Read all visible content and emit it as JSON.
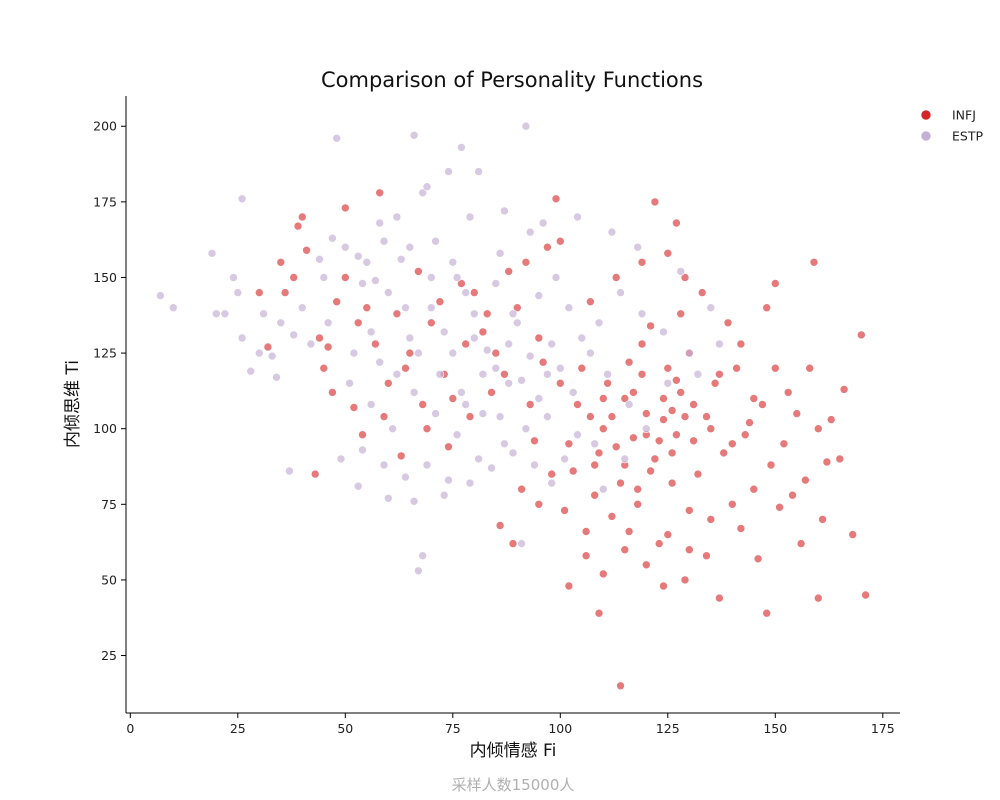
{
  "chart_data": {
    "type": "scatter",
    "title": "Comparison of Personality Functions",
    "xlabel": "内倾情感 Fi",
    "ylabel": "内倾思维 Ti",
    "footnote": "采样人数15000人",
    "xlim": [
      -1,
      179
    ],
    "ylim": [
      6,
      210
    ],
    "xticks": [
      0,
      25,
      50,
      75,
      100,
      125,
      150,
      175
    ],
    "yticks": [
      25,
      50,
      75,
      100,
      125,
      150,
      175,
      200
    ],
    "grid": false,
    "legend_position": "top-right",
    "series": [
      {
        "name": "INFJ",
        "color": "#d62728",
        "points": [
          [
            113,
            94
          ],
          [
            120,
            105
          ],
          [
            128,
            112
          ],
          [
            108,
            88
          ],
          [
            135,
            100
          ],
          [
            125,
            120
          ],
          [
            140,
            95
          ],
          [
            118,
            80
          ],
          [
            100,
            115
          ],
          [
            95,
            130
          ],
          [
            130,
            125
          ],
          [
            145,
            110
          ],
          [
            110,
            100
          ],
          [
            122,
            90
          ],
          [
            132,
            85
          ],
          [
            105,
            120
          ],
          [
            115,
            110
          ],
          [
            127,
            98
          ],
          [
            90,
            140
          ],
          [
            85,
            125
          ],
          [
            80,
            145
          ],
          [
            75,
            110
          ],
          [
            70,
            135
          ],
          [
            65,
            125
          ],
          [
            150,
            120
          ],
          [
            155,
            105
          ],
          [
            160,
            100
          ],
          [
            165,
            90
          ],
          [
            148,
            140
          ],
          [
            140,
            75
          ],
          [
            135,
            70
          ],
          [
            125,
            65
          ],
          [
            115,
            60
          ],
          [
            110,
            52
          ],
          [
            120,
            55
          ],
          [
            130,
            60
          ],
          [
            112,
            71
          ],
          [
            118,
            75
          ],
          [
            102,
            95
          ],
          [
            98,
            85
          ],
          [
            137,
            118
          ],
          [
            142,
            128
          ],
          [
            152,
            95
          ],
          [
            128,
            138
          ],
          [
            133,
            145
          ],
          [
            125,
            158
          ],
          [
            122,
            175
          ],
          [
            127,
            168
          ],
          [
            97,
            160
          ],
          [
            92,
            155
          ],
          [
            100,
            162
          ],
          [
            88,
            152
          ],
          [
            83,
            138
          ],
          [
            78,
            128
          ],
          [
            73,
            118
          ],
          [
            68,
            108
          ],
          [
            60,
            115
          ],
          [
            55,
            140
          ],
          [
            50,
            150
          ],
          [
            45,
            120
          ],
          [
            43,
            85
          ],
          [
            36,
            145
          ],
          [
            40,
            170
          ],
          [
            30,
            145
          ],
          [
            41,
            159
          ],
          [
            35,
            155
          ],
          [
            52,
            107
          ],
          [
            63,
            91
          ],
          [
            58,
            178
          ],
          [
            50,
            173
          ],
          [
            114,
            15
          ],
          [
            99,
            176
          ],
          [
            109,
            39
          ],
          [
            102,
            48
          ],
          [
            124,
            48
          ],
          [
            137,
            44
          ],
          [
            148,
            39
          ],
          [
            160,
            44
          ],
          [
            171,
            45
          ],
          [
            162,
            89
          ],
          [
            168,
            65
          ],
          [
            170,
            131
          ],
          [
            166,
            113
          ],
          [
            159,
            155
          ],
          [
            150,
            148
          ],
          [
            157,
            83
          ],
          [
            146,
            57
          ],
          [
            142,
            67
          ],
          [
            130,
            73
          ],
          [
            106,
            66
          ],
          [
            95,
            75
          ],
          [
            89,
            62
          ],
          [
            86,
            68
          ],
          [
            91,
            80
          ],
          [
            104,
            108
          ],
          [
            116,
            122
          ],
          [
            121,
            134
          ],
          [
            131,
            108
          ],
          [
            144,
            102
          ],
          [
            138,
            92
          ],
          [
            126,
            82
          ],
          [
            117,
            97
          ],
          [
            109,
            92
          ],
          [
            103,
            86
          ],
          [
            111,
            115
          ],
          [
            119,
            128
          ],
          [
            124,
            103
          ],
          [
            136,
            115
          ],
          [
            141,
            120
          ],
          [
            147,
            108
          ],
          [
            153,
            112
          ],
          [
            158,
            120
          ],
          [
            163,
            103
          ],
          [
            134,
            58
          ],
          [
            129,
            50
          ],
          [
            123,
            62
          ],
          [
            116,
            66
          ],
          [
            106,
            58
          ],
          [
            101,
            73
          ],
          [
            94,
            96
          ],
          [
            87,
            118
          ],
          [
            82,
            132
          ],
          [
            77,
            148
          ],
          [
            72,
            142
          ],
          [
            67,
            152
          ],
          [
            62,
            138
          ],
          [
            57,
            128
          ],
          [
            53,
            135
          ],
          [
            48,
            142
          ],
          [
            46,
            127
          ],
          [
            38,
            150
          ],
          [
            44,
            130
          ],
          [
            39,
            167
          ],
          [
            32,
            127
          ],
          [
            47,
            112
          ],
          [
            54,
            98
          ],
          [
            59,
            104
          ],
          [
            64,
            120
          ],
          [
            69,
            100
          ],
          [
            74,
            94
          ],
          [
            79,
            104
          ],
          [
            84,
            112
          ],
          [
            93,
            108
          ],
          [
            96,
            122
          ],
          [
            107,
            142
          ],
          [
            113,
            150
          ],
          [
            119,
            155
          ],
          [
            129,
            150
          ],
          [
            139,
            135
          ],
          [
            143,
            98
          ],
          [
            149,
            88
          ],
          [
            154,
            78
          ],
          [
            161,
            70
          ],
          [
            156,
            62
          ],
          [
            151,
            74
          ],
          [
            145,
            80
          ],
          [
            126,
            92
          ],
          [
            121,
            86
          ],
          [
            114,
            82
          ],
          [
            108,
            78
          ],
          [
            112,
            104
          ],
          [
            117,
            112
          ],
          [
            123,
            96
          ],
          [
            131,
            96
          ],
          [
            134,
            104
          ],
          [
            127,
            116
          ],
          [
            119,
            118
          ],
          [
            107,
            104
          ],
          [
            110,
            110
          ],
          [
            124,
            110
          ],
          [
            129,
            104
          ],
          [
            115,
            88
          ],
          [
            120,
            98
          ],
          [
            126,
            106
          ]
        ]
      },
      {
        "name": "ESTP",
        "color": "#c5b0d5",
        "points": [
          [
            80,
            130
          ],
          [
            85,
            120
          ],
          [
            75,
            125
          ],
          [
            90,
            135
          ],
          [
            70,
            140
          ],
          [
            95,
            110
          ],
          [
            65,
            130
          ],
          [
            88,
            115
          ],
          [
            78,
            145
          ],
          [
            82,
            105
          ],
          [
            100,
            120
          ],
          [
            105,
            130
          ],
          [
            92,
            100
          ],
          [
            72,
            118
          ],
          [
            60,
            145
          ],
          [
            55,
            155
          ],
          [
            50,
            160
          ],
          [
            45,
            150
          ],
          [
            40,
            140
          ],
          [
            35,
            135
          ],
          [
            30,
            125
          ],
          [
            25,
            145
          ],
          [
            20,
            138
          ],
          [
            62,
            170
          ],
          [
            68,
            178
          ],
          [
            74,
            185
          ],
          [
            58,
            168
          ],
          [
            48,
            196
          ],
          [
            66,
            197
          ],
          [
            77,
            193
          ],
          [
            92,
            200
          ],
          [
            81,
            185
          ],
          [
            69,
            180
          ],
          [
            10,
            140
          ],
          [
            7,
            144
          ],
          [
            19,
            158
          ],
          [
            24,
            150
          ],
          [
            26,
            176
          ],
          [
            37,
            86
          ],
          [
            67,
            53
          ],
          [
            68,
            58
          ],
          [
            53,
            81
          ],
          [
            60,
            77
          ],
          [
            66,
            76
          ],
          [
            73,
            78
          ],
          [
            91,
            62
          ],
          [
            98,
            82
          ],
          [
            110,
            80
          ],
          [
            115,
            90
          ],
          [
            120,
            100
          ],
          [
            125,
            115
          ],
          [
            130,
            125
          ],
          [
            135,
            140
          ],
          [
            128,
            152
          ],
          [
            118,
            160
          ],
          [
            112,
            165
          ],
          [
            104,
            170
          ],
          [
            96,
            168
          ],
          [
            86,
            158
          ],
          [
            76,
            150
          ],
          [
            64,
            140
          ],
          [
            56,
            132
          ],
          [
            52,
            125
          ],
          [
            46,
            135
          ],
          [
            42,
            128
          ],
          [
            38,
            131
          ],
          [
            33,
            124
          ],
          [
            31,
            138
          ],
          [
            28,
            119
          ],
          [
            26,
            130
          ],
          [
            22,
            138
          ],
          [
            34,
            117
          ],
          [
            44,
            156
          ],
          [
            47,
            163
          ],
          [
            53,
            157
          ],
          [
            57,
            149
          ],
          [
            63,
            156
          ],
          [
            71,
            162
          ],
          [
            79,
            170
          ],
          [
            87,
            172
          ],
          [
            93,
            165
          ],
          [
            99,
            150
          ],
          [
            102,
            140
          ],
          [
            107,
            125
          ],
          [
            111,
            118
          ],
          [
            116,
            108
          ],
          [
            108,
            95
          ],
          [
            101,
            90
          ],
          [
            94,
            88
          ],
          [
            87,
            95
          ],
          [
            81,
            90
          ],
          [
            76,
            98
          ],
          [
            71,
            105
          ],
          [
            66,
            112
          ],
          [
            61,
            100
          ],
          [
            56,
            108
          ],
          [
            51,
            115
          ],
          [
            49,
            90
          ],
          [
            54,
            93
          ],
          [
            59,
            88
          ],
          [
            64,
            84
          ],
          [
            69,
            88
          ],
          [
            74,
            83
          ],
          [
            79,
            82
          ],
          [
            84,
            87
          ],
          [
            89,
            92
          ],
          [
            97,
            104
          ],
          [
            103,
            112
          ],
          [
            109,
            135
          ],
          [
            114,
            145
          ],
          [
            119,
            138
          ],
          [
            124,
            132
          ],
          [
            132,
            118
          ],
          [
            137,
            128
          ],
          [
            77,
            112
          ],
          [
            83,
            126
          ],
          [
            89,
            138
          ],
          [
            95,
            144
          ],
          [
            73,
            132
          ],
          [
            67,
            125
          ],
          [
            62,
            118
          ],
          [
            58,
            122
          ],
          [
            86,
            104
          ],
          [
            91,
            116
          ],
          [
            98,
            128
          ],
          [
            104,
            98
          ],
          [
            80,
            138
          ],
          [
            85,
            148
          ],
          [
            75,
            155
          ],
          [
            70,
            150
          ],
          [
            65,
            160
          ],
          [
            59,
            162
          ],
          [
            54,
            148
          ],
          [
            93,
            124
          ],
          [
            97,
            118
          ],
          [
            82,
            118
          ],
          [
            78,
            108
          ],
          [
            88,
            128
          ]
        ]
      }
    ]
  }
}
